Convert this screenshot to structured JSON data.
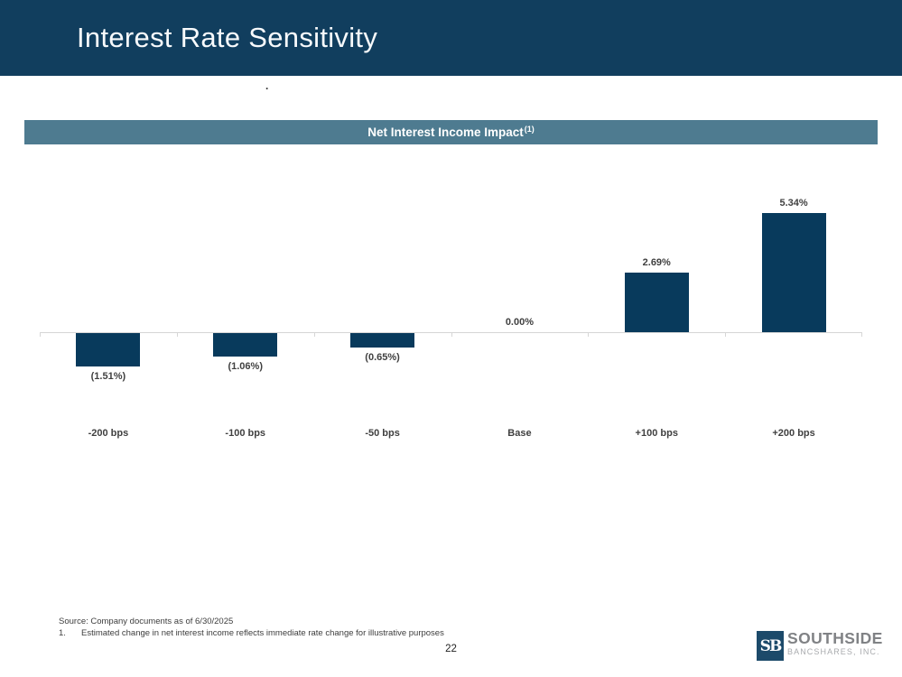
{
  "slide": {
    "title": "Interest Rate Sensitivity",
    "stray_mark": ".",
    "page_number": "22"
  },
  "banner": {
    "title": "Net Interest Income Impact",
    "superscript": "(1)"
  },
  "chart_data": {
    "type": "bar",
    "title": "Net Interest Income Impact(1)",
    "categories": [
      "-200 bps",
      "-100 bps",
      "-50 bps",
      "Base",
      "+100 bps",
      "+200 bps"
    ],
    "values": [
      -1.51,
      -1.06,
      -0.65,
      0.0,
      2.69,
      5.34
    ],
    "value_labels": [
      "(1.51%)",
      "(1.06%)",
      "(0.65%)",
      "0.00%",
      "2.69%",
      "5.34%"
    ],
    "ylabel": "",
    "xlabel": "",
    "ylim": [
      -2.6,
      6.5
    ],
    "grid": false,
    "legend": false,
    "bar_color": "#083a5c",
    "axis_color": "#d6d6d6",
    "label_color": "#404040"
  },
  "footer": {
    "source": "Source: Company documents as of 6/30/2025",
    "footnote_number": "1.",
    "footnote": "Estimated change in net interest income reflects immediate rate change for illustrative purposes"
  },
  "logo": {
    "icon_text": "SB",
    "name": "SOUTHSIDE",
    "subname": "BANCSHARES, INC."
  },
  "colors": {
    "slide_bg": "#ffffff",
    "header_bg": "#113e5e",
    "banner_bg": "#4e7b90",
    "text_light": "#f8fafc",
    "footnote_text": "#3d3d3d",
    "logo_navy": "#1c4a6a",
    "logo_gray": "#808285",
    "logo_light_gray": "#a9abae"
  }
}
